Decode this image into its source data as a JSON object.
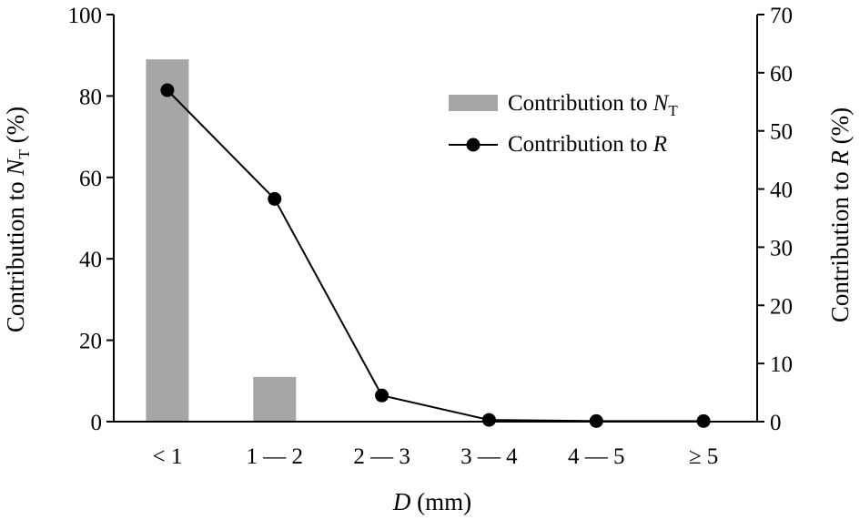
{
  "chart_data": {
    "type": "bar+line",
    "categories": [
      "< 1",
      "1 — 2",
      "2 — 3",
      "3 — 4",
      "4 — 5",
      "≥ 5"
    ],
    "series": [
      {
        "name": "Contribution to N_T",
        "type": "bar",
        "axis": "left",
        "values": [
          89,
          11,
          0,
          0,
          0,
          0
        ]
      },
      {
        "name": "Contribution to R",
        "type": "line",
        "axis": "right",
        "values": [
          57,
          38.3,
          4.5,
          0.3,
          0.1,
          0.1
        ]
      }
    ],
    "xlabel": "D (mm)",
    "ylabel_left": "Contribution to N_T (%)",
    "ylabel_right": "Contribution to R (%)",
    "ylim_left": [
      0,
      100
    ],
    "ylim_right": [
      0,
      70
    ],
    "yticks_left": [
      0,
      20,
      40,
      60,
      80,
      100
    ],
    "yticks_right": [
      0,
      10,
      20,
      30,
      40,
      50,
      60,
      70
    ],
    "grid": false,
    "legend_position": "top-right",
    "legend": [
      {
        "label": "Contribution to",
        "italic": "N",
        "sub": "T",
        "marker": "bar"
      },
      {
        "label": "Contribution to",
        "italic": "R",
        "marker": "line-circle"
      }
    ],
    "colors": {
      "bar": "#a6a6a6",
      "line": "#000000",
      "axis": "#000000"
    }
  }
}
